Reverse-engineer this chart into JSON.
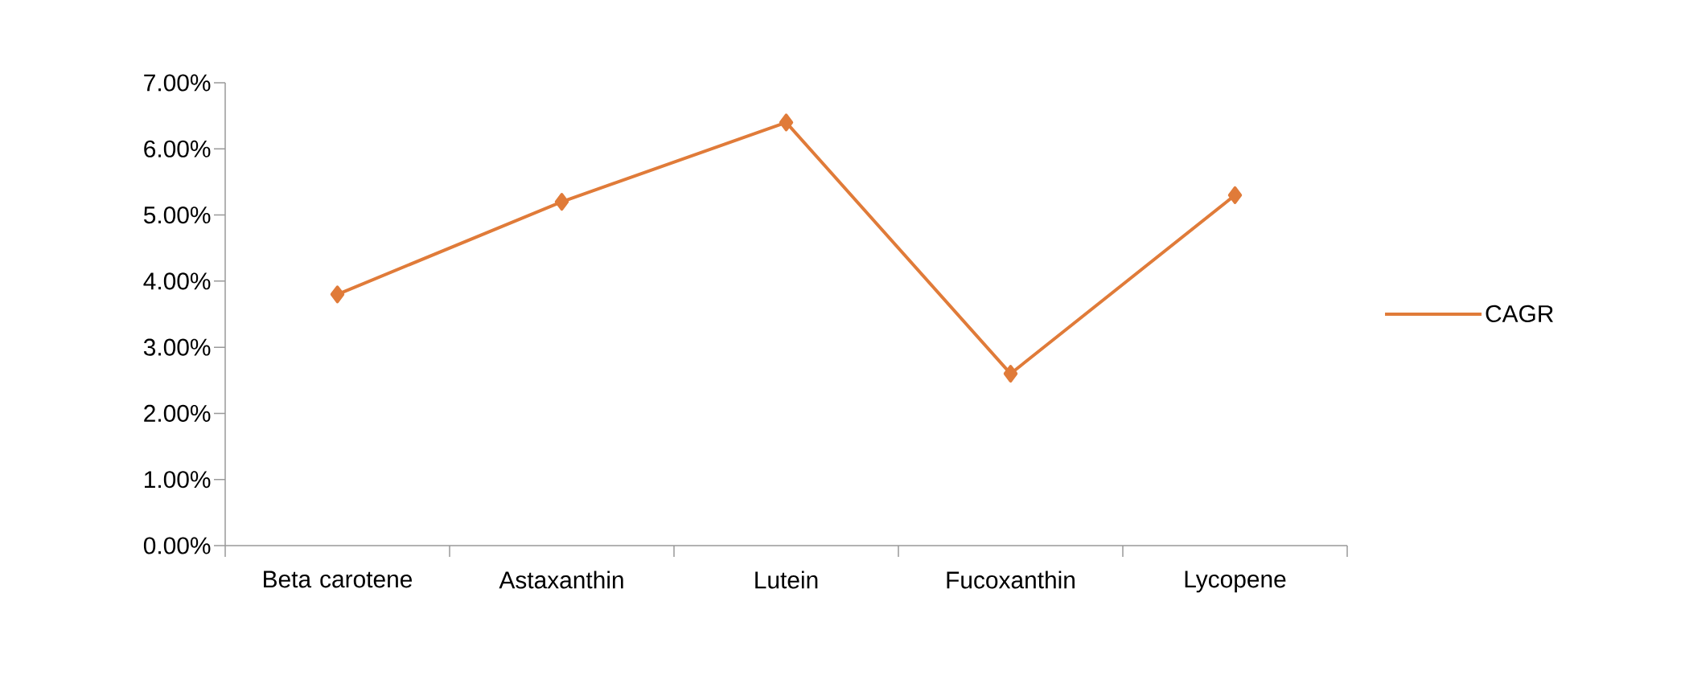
{
  "chart_data": {
    "type": "line",
    "categories": [
      "Beta carotene",
      "Astaxanthin",
      "Lutein",
      "Fucoxanthin",
      "Lycopene"
    ],
    "series": [
      {
        "name": "CAGR",
        "color": "#e07b39",
        "values": [
          3.8,
          5.2,
          6.4,
          2.6,
          5.3
        ]
      }
    ],
    "ylim": [
      0,
      7
    ],
    "yticks": [
      {
        "value": 0,
        "label": "0.00%"
      },
      {
        "value": 1,
        "label": "1.00%"
      },
      {
        "value": 2,
        "label": "2.00%"
      },
      {
        "value": 3,
        "label": "3.00%"
      },
      {
        "value": 4,
        "label": "4.00%"
      },
      {
        "value": 5,
        "label": "5.00%"
      },
      {
        "value": 6,
        "label": "6.00%"
      },
      {
        "value": 7,
        "label": "7.00%"
      }
    ],
    "marker": "diamond",
    "legend": "right",
    "grid": false
  }
}
